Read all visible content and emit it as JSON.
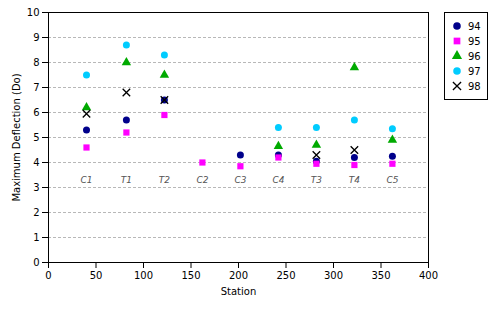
{
  "chart_data": {
    "type": "scatter",
    "xlabel": "Station",
    "ylabel": "Maximum Deflection (Do)",
    "xlim": [
      0,
      400
    ],
    "ylim": [
      0,
      10
    ],
    "xticks": [
      0,
      50,
      100,
      150,
      200,
      250,
      300,
      350,
      400
    ],
    "yticks": [
      0,
      1,
      2,
      3,
      4,
      5,
      6,
      7,
      8,
      9,
      10
    ],
    "grid": "y",
    "legend": "right",
    "series": [
      {
        "name": "94",
        "color": "#00008B",
        "marker": "circle",
        "x": [
          40,
          82,
          122,
          202,
          242,
          282,
          322,
          362
        ],
        "values": [
          5.3,
          5.7,
          6.5,
          4.3,
          4.3,
          4.05,
          4.2,
          4.25
        ]
      },
      {
        "name": "95",
        "color": "#FF00FF",
        "marker": "square",
        "x": [
          40,
          82,
          122,
          162,
          202,
          242,
          282,
          322,
          362
        ],
        "values": [
          4.6,
          5.2,
          5.9,
          4.0,
          3.85,
          4.2,
          3.95,
          3.9,
          3.95
        ]
      },
      {
        "name": "96",
        "color": "#00AA00",
        "marker": "triangle",
        "x": [
          40,
          82,
          122,
          242,
          282,
          322,
          362
        ],
        "values": [
          6.2,
          8.0,
          7.5,
          4.65,
          4.7,
          7.8,
          4.9
        ]
      },
      {
        "name": "97",
        "color": "#00CCFF",
        "marker": "circle",
        "x": [
          40,
          82,
          122,
          242,
          282,
          322,
          362
        ],
        "values": [
          7.5,
          8.7,
          8.3,
          5.4,
          5.4,
          5.7,
          5.35
        ]
      },
      {
        "name": "98",
        "color": "#000000",
        "marker": "x",
        "x": [
          40,
          82,
          122,
          282,
          322
        ],
        "values": [
          5.95,
          6.8,
          6.5,
          4.3,
          4.5
        ]
      }
    ],
    "annotations": [
      {
        "text": "C1",
        "x": 40,
        "y": 3.3
      },
      {
        "text": "T1",
        "x": 82,
        "y": 3.3
      },
      {
        "text": "T2",
        "x": 122,
        "y": 3.3
      },
      {
        "text": "C2",
        "x": 162,
        "y": 3.3
      },
      {
        "text": "C3",
        "x": 202,
        "y": 3.3
      },
      {
        "text": "C4",
        "x": 242,
        "y": 3.3
      },
      {
        "text": "T3",
        "x": 282,
        "y": 3.3
      },
      {
        "text": "T4",
        "x": 322,
        "y": 3.3
      },
      {
        "text": "C5",
        "x": 362,
        "y": 3.3
      }
    ]
  }
}
